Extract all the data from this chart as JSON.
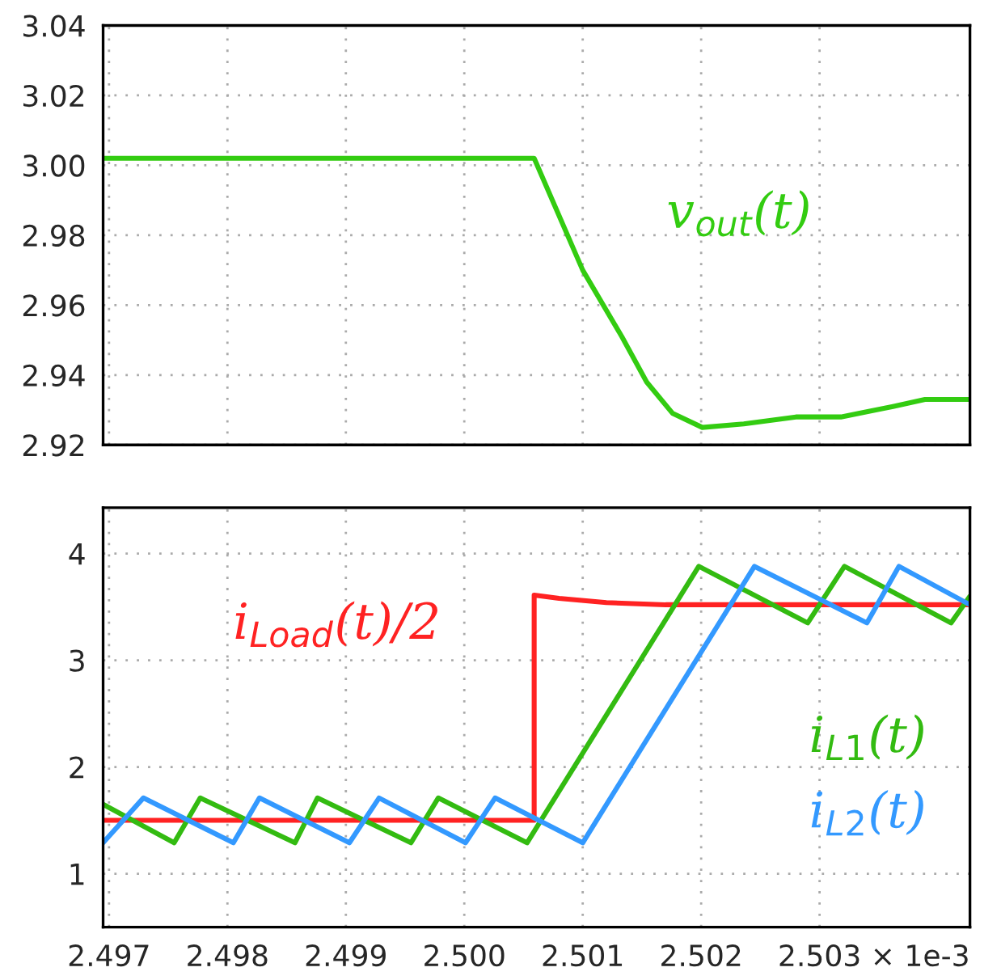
{
  "chart_data": [
    {
      "type": "line",
      "xlim": [
        2.49695,
        2.50427
      ],
      "xticks": [
        2.497,
        2.498,
        2.499,
        2.5,
        2.501,
        2.502,
        2.503
      ],
      "ylim": [
        2.92,
        3.04
      ],
      "yticks": [
        {
          "value": 2.92,
          "label": "2.92"
        },
        {
          "value": 2.94,
          "label": "2.94"
        },
        {
          "value": 2.96,
          "label": "2.96"
        },
        {
          "value": 2.98,
          "label": "2.98"
        },
        {
          "value": 3.0,
          "label": "3.00"
        },
        {
          "value": 3.02,
          "label": "3.02"
        },
        {
          "value": 3.04,
          "label": "3.04"
        }
      ],
      "tick_labels": "y",
      "grid": true,
      "legend": false,
      "series": [
        {
          "name": "v$_{out}$(t)",
          "color": "#33cc11",
          "x": [
            2.49695,
            2.50059,
            2.501,
            2.50133,
            2.50154,
            2.50176,
            2.50201,
            2.50236,
            2.5028,
            2.50318,
            2.50362,
            2.50389,
            2.50427
          ],
          "values": [
            3.002,
            3.002,
            2.97,
            2.951,
            2.938,
            2.929,
            2.925,
            2.926,
            2.928,
            2.928,
            2.931,
            2.933,
            2.933
          ]
        }
      ]
    },
    {
      "type": "line",
      "xlim": [
        2.49695,
        2.50427
      ],
      "xticks": [
        {
          "value": 2.497,
          "label": "2.497"
        },
        {
          "value": 2.498,
          "label": "2.498"
        },
        {
          "value": 2.499,
          "label": "2.499"
        },
        {
          "value": 2.5,
          "label": "2.500"
        },
        {
          "value": 2.501,
          "label": "2.501"
        },
        {
          "value": 2.502,
          "label": "2.502"
        },
        {
          "value": 2.503,
          "label": "2.503"
        }
      ],
      "ylim": [
        0.5,
        4.43
      ],
      "yticks": [
        1,
        2,
        3,
        4
      ],
      "grid": true,
      "legend": false,
      "annotations": [
        "× 1e-3"
      ],
      "series": [
        {
          "name": "i$_{Load}$(t)/2",
          "color": "#ff2222",
          "x": [
            2.49695,
            2.50059,
            2.50059,
            2.5008,
            2.5012,
            2.5017,
            2.50427
          ],
          "values": [
            1.5,
            1.5,
            3.61,
            3.58,
            3.54,
            3.52,
            3.52
          ]
        },
        {
          "name": "i$_{L1}$(t)",
          "color": "#33bb11",
          "x": [
            2.49695,
            2.49755,
            2.49777,
            2.49857,
            2.49876,
            2.49955,
            2.49978,
            2.50053,
            2.50198,
            2.5029,
            2.50321,
            2.50411,
            2.50427
          ],
          "values": [
            1.65,
            1.29,
            1.71,
            1.29,
            1.71,
            1.29,
            1.71,
            1.29,
            3.88,
            3.35,
            3.88,
            3.35,
            3.6
          ]
        },
        {
          "name": "i$_{L2}$(t)",
          "color": "#3399ff",
          "x": [
            2.49695,
            2.49729,
            2.49805,
            2.49827,
            2.49903,
            2.49928,
            2.50001,
            2.50026,
            2.501,
            2.50245,
            2.5034,
            2.50367,
            2.50427
          ],
          "values": [
            1.29,
            1.71,
            1.29,
            1.71,
            1.29,
            1.71,
            1.29,
            1.71,
            1.29,
            3.88,
            3.35,
            3.88,
            3.52
          ]
        }
      ]
    }
  ]
}
